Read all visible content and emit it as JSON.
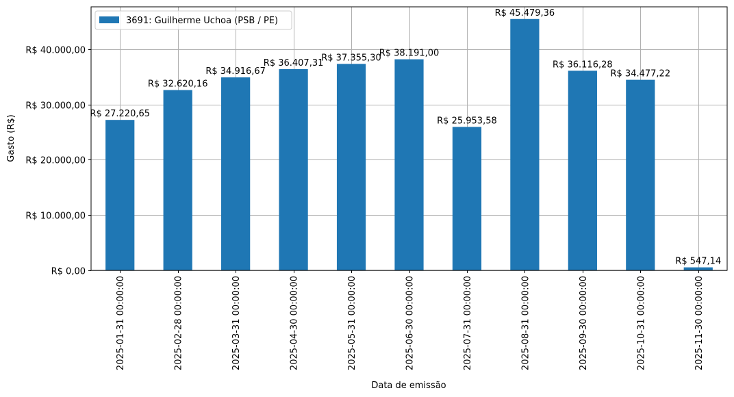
{
  "chart_data": {
    "type": "bar",
    "title": "",
    "xlabel": "Data de emissão",
    "ylabel": "Gasto (R$)",
    "ylim": [
      0,
      47678
    ],
    "grid": true,
    "legend_position": "upper left",
    "categories": [
      "2025-01-31 00:00:00",
      "2025-02-28 00:00:00",
      "2025-03-31 00:00:00",
      "2025-04-30 00:00:00",
      "2025-05-31 00:00:00",
      "2025-06-30 00:00:00",
      "2025-07-31 00:00:00",
      "2025-08-31 00:00:00",
      "2025-09-30 00:00:00",
      "2025-10-31 00:00:00",
      "2025-11-30 00:00:00"
    ],
    "series": [
      {
        "name": "3691: Guilherme Uchoa (PSB / PE)",
        "color": "#1f77b4",
        "values": [
          27220.65,
          32620.16,
          34916.67,
          36407.31,
          37355.3,
          38191.0,
          25953.58,
          45479.36,
          36116.28,
          34477.22,
          547.14
        ],
        "labels": [
          "R$ 27.220,65",
          "R$ 32.620,16",
          "R$ 34.916,67",
          "R$ 36.407,31",
          "R$ 37.355,30",
          "R$ 38.191,00",
          "R$ 25.953,58",
          "R$ 45.479,36",
          "R$ 36.116,28",
          "R$ 34.477,22",
          "R$ 547,14"
        ]
      }
    ],
    "yticks": [
      {
        "value": 0,
        "label": "R$ 0,00"
      },
      {
        "value": 10000,
        "label": "R$ 10.000,00"
      },
      {
        "value": 20000,
        "label": "R$ 20.000,00"
      },
      {
        "value": 30000,
        "label": "R$ 30.000,00"
      },
      {
        "value": 40000,
        "label": "R$ 40.000,00"
      }
    ]
  },
  "colors": {
    "bar": "#1f77b4",
    "grid": "#b0b0b0",
    "axis": "#000000",
    "legend_border": "#cccccc"
  }
}
